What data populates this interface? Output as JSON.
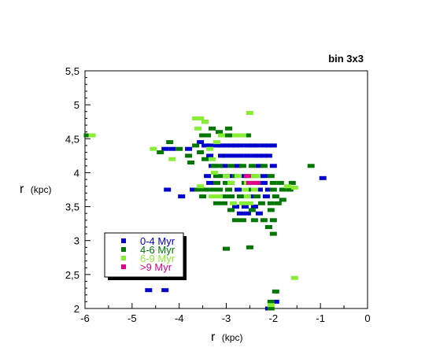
{
  "chart_data": {
    "type": "scatter",
    "title": "bin 3x3",
    "xlabel_main": "r",
    "xlabel_unit": "(kpc)",
    "ylabel_main": "r",
    "ylabel_unit": "(kpc)",
    "xlim": [
      -6,
      0
    ],
    "ylim": [
      2,
      5.5
    ],
    "grid": false,
    "legend_position": "bottom-left",
    "xticks": [
      {
        "value": -6,
        "label": "-6"
      },
      {
        "value": -5,
        "label": "-5"
      },
      {
        "value": -4,
        "label": "-4"
      },
      {
        "value": -3,
        "label": "-3"
      },
      {
        "value": -2,
        "label": "-2"
      },
      {
        "value": -1,
        "label": "-1"
      },
      {
        "value": 0,
        "label": "0"
      }
    ],
    "yticks": [
      {
        "value": 2,
        "label": "2"
      },
      {
        "value": 2.5,
        "label": "2,5"
      },
      {
        "value": 3,
        "label": "3"
      },
      {
        "value": 3.5,
        "label": "3,5"
      },
      {
        "value": 4,
        "label": "4"
      },
      {
        "value": 4.5,
        "label": "4,5"
      },
      {
        "value": 5,
        "label": "5"
      },
      {
        "value": 5.5,
        "label": "5,5"
      }
    ],
    "series": [
      {
        "name": "0-4 Myr",
        "color": "#0000cc",
        "points": [
          [
            -4.3,
            4.35
          ],
          [
            -4.15,
            4.35
          ],
          [
            -3.8,
            4.35
          ],
          [
            -3.55,
            4.45
          ],
          [
            -3.45,
            4.4
          ],
          [
            -3.35,
            4.4
          ],
          [
            -3.2,
            4.4
          ],
          [
            -3.1,
            4.4
          ],
          [
            -3.0,
            4.4
          ],
          [
            -2.9,
            4.4
          ],
          [
            -2.8,
            4.4
          ],
          [
            -2.7,
            4.4
          ],
          [
            -2.55,
            4.4
          ],
          [
            -2.45,
            4.4
          ],
          [
            -2.35,
            4.4
          ],
          [
            -2.2,
            4.4
          ],
          [
            -2.1,
            4.4
          ],
          [
            -2.0,
            4.4
          ],
          [
            -3.35,
            4.25
          ],
          [
            -3.1,
            4.25
          ],
          [
            -3.0,
            4.25
          ],
          [
            -2.85,
            4.25
          ],
          [
            -2.7,
            4.25
          ],
          [
            -2.55,
            4.25
          ],
          [
            -2.4,
            4.25
          ],
          [
            -2.3,
            4.25
          ],
          [
            -2.2,
            4.25
          ],
          [
            -2.1,
            4.25
          ],
          [
            -3.3,
            4.1
          ],
          [
            -3.05,
            4.1
          ],
          [
            -2.75,
            4.1
          ],
          [
            -2.3,
            4.1
          ],
          [
            -2.0,
            4.1
          ],
          [
            -3.4,
            3.95
          ],
          [
            -2.95,
            3.95
          ],
          [
            -2.6,
            3.95
          ],
          [
            -2.2,
            3.95
          ],
          [
            -3.35,
            3.85
          ],
          [
            -2.9,
            3.85
          ],
          [
            -2.2,
            3.85
          ],
          [
            -3.7,
            3.75
          ],
          [
            -2.75,
            3.75
          ],
          [
            -2.3,
            3.75
          ],
          [
            -2.1,
            3.75
          ],
          [
            -4.25,
            3.75
          ],
          [
            -3.95,
            3.65
          ],
          [
            -2.5,
            3.65
          ],
          [
            -2.15,
            3.65
          ],
          [
            -2.8,
            3.5
          ],
          [
            -2.6,
            3.5
          ],
          [
            -2.4,
            3.5
          ],
          [
            -2.7,
            3.4
          ],
          [
            -2.55,
            3.4
          ],
          [
            -2.3,
            3.4
          ],
          [
            -0.95,
            3.92
          ],
          [
            -4.65,
            2.27
          ],
          [
            -4.3,
            2.27
          ],
          [
            -1.95,
            2.1
          ],
          [
            -2.1,
            2.0
          ]
        ]
      },
      {
        "name": "4-6 Myr",
        "color": "#007700",
        "points": [
          [
            -5.95,
            4.55
          ],
          [
            -4.2,
            4.45
          ],
          [
            -4.4,
            4.3
          ],
          [
            -4.0,
            4.35
          ],
          [
            -3.8,
            4.25
          ],
          [
            -3.75,
            4.15
          ],
          [
            -3.45,
            4.75
          ],
          [
            -3.3,
            4.65
          ],
          [
            -3.15,
            4.6
          ],
          [
            -2.95,
            4.55
          ],
          [
            -2.55,
            4.55
          ],
          [
            -2.95,
            4.65
          ],
          [
            -3.5,
            4.55
          ],
          [
            -3.4,
            4.55
          ],
          [
            -3.65,
            4.4
          ],
          [
            -3.55,
            4.3
          ],
          [
            -3.45,
            4.2
          ],
          [
            -3.25,
            4.1
          ],
          [
            -3.15,
            4.1
          ],
          [
            -2.9,
            4.1
          ],
          [
            -2.65,
            4.1
          ],
          [
            -2.45,
            4.1
          ],
          [
            -2.2,
            4.1
          ],
          [
            -3.2,
            3.95
          ],
          [
            -3.05,
            3.95
          ],
          [
            -2.8,
            3.95
          ],
          [
            -2.4,
            3.95
          ],
          [
            -2.05,
            3.95
          ],
          [
            -3.2,
            3.85
          ],
          [
            -3.0,
            3.85
          ],
          [
            -2.6,
            3.85
          ],
          [
            -2.35,
            3.85
          ],
          [
            -2.0,
            3.85
          ],
          [
            -1.85,
            3.85
          ],
          [
            -3.6,
            3.75
          ],
          [
            -3.45,
            3.75
          ],
          [
            -3.3,
            3.75
          ],
          [
            -3.15,
            3.75
          ],
          [
            -2.95,
            3.75
          ],
          [
            -2.45,
            3.75
          ],
          [
            -2.0,
            3.75
          ],
          [
            -1.8,
            3.75
          ],
          [
            -1.65,
            3.75
          ],
          [
            -3.5,
            3.65
          ],
          [
            -3.05,
            3.65
          ],
          [
            -2.9,
            3.65
          ],
          [
            -2.7,
            3.65
          ],
          [
            -2.35,
            3.65
          ],
          [
            -1.95,
            3.65
          ],
          [
            -3.2,
            3.55
          ],
          [
            -3.05,
            3.55
          ],
          [
            -2.25,
            3.55
          ],
          [
            -2.05,
            3.55
          ],
          [
            -1.9,
            3.55
          ],
          [
            -2.9,
            3.45
          ],
          [
            -2.45,
            3.45
          ],
          [
            -2.05,
            3.45
          ],
          [
            -2.8,
            3.3
          ],
          [
            -2.65,
            3.3
          ],
          [
            -2.4,
            3.3
          ],
          [
            -2.2,
            3.3
          ],
          [
            -2.0,
            3.3
          ],
          [
            -2.1,
            3.2
          ],
          [
            -2.0,
            3.1
          ],
          [
            -2.5,
            2.9
          ],
          [
            -1.2,
            4.1
          ],
          [
            -1.6,
            3.85
          ],
          [
            -1.8,
            3.6
          ],
          [
            -3.0,
            2.88
          ],
          [
            -1.95,
            2.25
          ],
          [
            -2.05,
            2.1
          ],
          [
            -2.05,
            2.0
          ]
        ]
      },
      {
        "name": "6-9 Myr",
        "color": "#88ee33",
        "points": [
          [
            -5.85,
            4.55
          ],
          [
            -3.65,
            4.8
          ],
          [
            -3.55,
            4.8
          ],
          [
            -3.45,
            4.75
          ],
          [
            -3.6,
            4.65
          ],
          [
            -3.2,
            4.45
          ],
          [
            -3.1,
            4.55
          ],
          [
            -2.5,
            4.88
          ],
          [
            -2.8,
            4.55
          ],
          [
            -2.65,
            4.55
          ],
          [
            -4.55,
            4.35
          ],
          [
            -4.15,
            4.2
          ],
          [
            -3.35,
            4.35
          ],
          [
            -3.3,
            4.2
          ],
          [
            -3.25,
            4.0
          ],
          [
            -3.0,
            3.95
          ],
          [
            -2.75,
            3.95
          ],
          [
            -2.5,
            3.95
          ],
          [
            -2.35,
            3.95
          ],
          [
            -2.9,
            3.85
          ],
          [
            -2.55,
            3.85
          ],
          [
            -2.45,
            3.85
          ],
          [
            -3.55,
            3.8
          ],
          [
            -2.6,
            3.75
          ],
          [
            -2.4,
            3.75
          ],
          [
            -3.3,
            3.65
          ],
          [
            -3.15,
            3.65
          ],
          [
            -2.55,
            3.65
          ],
          [
            -2.85,
            3.55
          ],
          [
            -2.65,
            3.55
          ],
          [
            -2.5,
            3.55
          ],
          [
            -1.55,
            3.78
          ],
          [
            -1.7,
            3.8
          ],
          [
            -1.55,
            2.45
          ],
          [
            -2.05,
            2.05
          ]
        ]
      },
      {
        "name": ">9 Myr",
        "color": "#dd0088",
        "points": [
          [
            -2.55,
            3.95
          ],
          [
            -2.5,
            3.85
          ],
          [
            -2.35,
            3.85
          ]
        ]
      }
    ]
  }
}
